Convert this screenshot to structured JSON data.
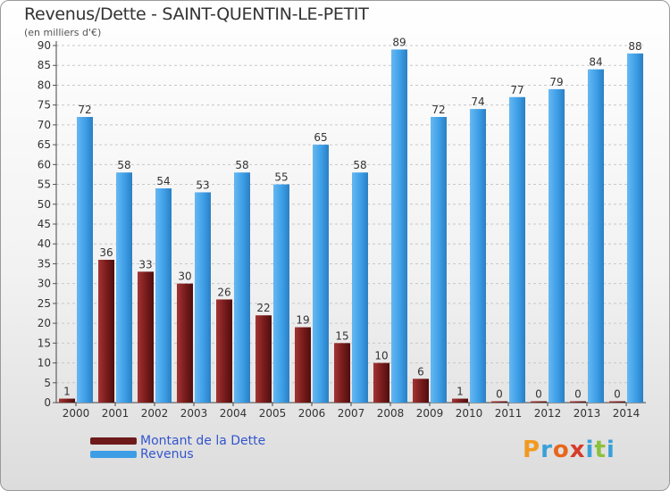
{
  "title": "Revenus/Dette - SAINT-QUENTIN-LE-PETIT",
  "subtitle": "(en milliers d'€)",
  "logo": {
    "letters": [
      "P",
      "r",
      "o",
      "x",
      "i",
      "t",
      "i"
    ]
  },
  "colors": {
    "dette": "#7a1c1c",
    "revenus": "#3d9ee6",
    "grid": "#c8c8c8",
    "legend_text": "#3355cc"
  },
  "legend": [
    {
      "label": "Montant de la Dette",
      "color": "#6e1a1a"
    },
    {
      "label": "Revenus",
      "color": "#3d9ee6"
    }
  ],
  "chart_data": {
    "type": "bar",
    "title": "Revenus/Dette - SAINT-QUENTIN-LE-PETIT",
    "ylabel": "(en milliers d'€)",
    "xlabel": "",
    "ylim": [
      0,
      90
    ],
    "yticks": [
      0,
      5,
      10,
      15,
      20,
      25,
      30,
      35,
      40,
      45,
      50,
      55,
      60,
      65,
      70,
      75,
      80,
      85,
      90
    ],
    "grid": true,
    "legend_position": "bottom-left",
    "categories": [
      "2000",
      "2001",
      "2002",
      "2003",
      "2004",
      "2005",
      "2006",
      "2007",
      "2008",
      "2009",
      "2010",
      "2011",
      "2012",
      "2013",
      "2014"
    ],
    "series": [
      {
        "name": "Montant de la Dette",
        "values": [
          1,
          36,
          33,
          30,
          26,
          22,
          19,
          15,
          10,
          6,
          1,
          0,
          0,
          0,
          0
        ]
      },
      {
        "name": "Revenus",
        "values": [
          72,
          58,
          54,
          53,
          58,
          55,
          65,
          58,
          89,
          72,
          74,
          77,
          79,
          84,
          88
        ]
      }
    ]
  }
}
